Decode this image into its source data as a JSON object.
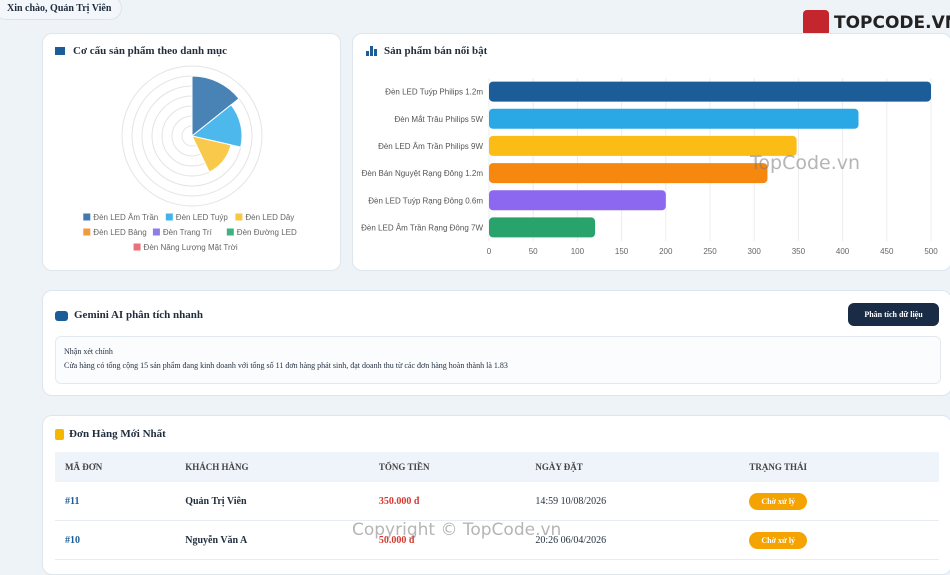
{
  "header": {
    "greeting": "Xin chào, Quản Trị Viên",
    "logo": "TOPCODE.VN"
  },
  "chart_data": [
    {
      "type": "polarArea",
      "title": "Cơ cấu sản phẩm theo danh mục",
      "categories": [
        "Đèn LED Âm Trần",
        "Đèn LED Tuýp",
        "Đèn LED Dây",
        "Đèn LED Bảng",
        "Đèn Trang Trí",
        "Đèn Đường LED",
        "Đèn Năng Lượng Mặt Trời"
      ],
      "values": [
        6,
        5,
        4,
        0,
        0,
        0,
        0
      ],
      "colors": [
        "#3f7bb0",
        "#43b4ea",
        "#f9c642",
        "#f29a3c",
        "#8d7ee8",
        "#3fb27f",
        "#ec6f7c"
      ],
      "rlim": [
        0,
        7
      ],
      "rticks": [
        1,
        2,
        3,
        4,
        5,
        6,
        7
      ],
      "grid": true,
      "legend": "bottom"
    },
    {
      "type": "hbar",
      "title": "Sản phẩm bán nổi bật",
      "categories": [
        "Đèn LED Tuýp Philips 1.2m",
        "Đèn Mắt Trâu Philips 5W",
        "Đèn LED Âm Trần Philips 9W",
        "Đèn Bán Nguyệt Rạng Đông 1.2m",
        "Đèn LED Tuýp Rạng Đông 0.6m",
        "Đèn LED Âm Trần Rạng Đông 7W"
      ],
      "values": [
        500,
        418,
        348,
        315,
        200,
        120
      ],
      "colors": [
        "#1c5d99",
        "#2aa8e6",
        "#fbbc16",
        "#f7880f",
        "#8c67ef",
        "#27a36b"
      ],
      "xlim": [
        0,
        500
      ],
      "xticks": [
        0,
        50,
        100,
        150,
        200,
        250,
        300,
        350,
        400,
        450,
        500
      ],
      "grid": true
    }
  ],
  "ai": {
    "title": "Gemini AI phân tích nhanh",
    "button": "Phân tích dữ liệu",
    "heading": "Nhận xét chính",
    "text": "Cửa hàng có tổng cộng 15 sản phẩm đang kinh doanh với tổng số 11 đơn hàng phát sinh, đạt doanh thu từ các đơn hàng hoàn thành là 1.83"
  },
  "orders": {
    "title": "Đơn Hàng Mới Nhất",
    "headers": [
      "MÃ ĐƠN",
      "KHÁCH HÀNG",
      "TỔNG TIỀN",
      "NGÀY ĐẶT",
      "TRẠNG THÁI"
    ],
    "rows": [
      [
        "#11",
        "Quản Trị Viên",
        "350.000 đ",
        "14:59 10/08/2026",
        "Chờ xử lý"
      ],
      [
        "#10",
        "Nguyễn Văn A",
        "50.000 đ",
        "20:26 06/04/2026",
        "Chờ xử lý"
      ]
    ]
  },
  "watermarks": [
    "TopCode.vn",
    "Copyright © TopCode.vn"
  ]
}
